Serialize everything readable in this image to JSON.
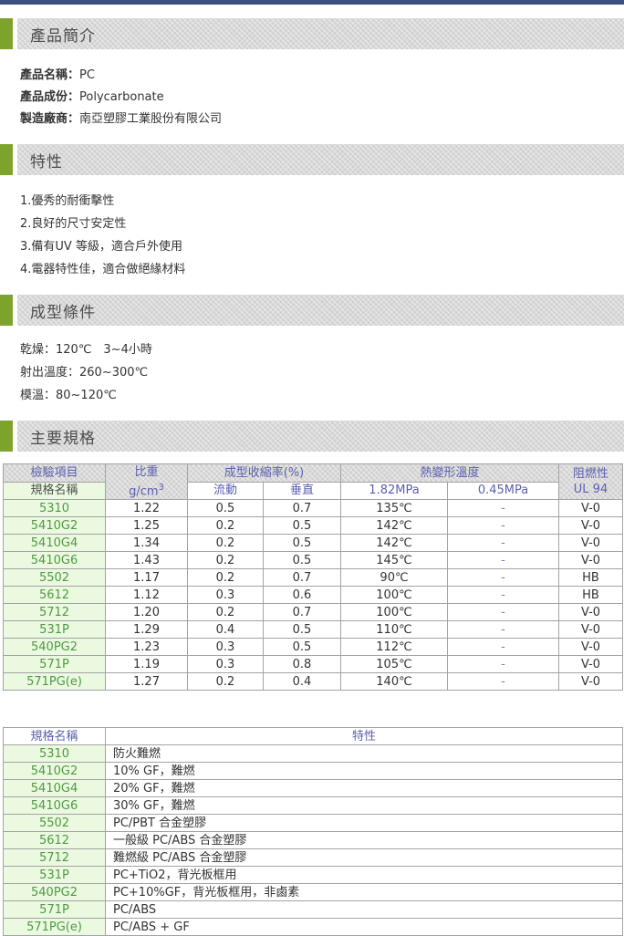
{
  "page": {
    "topbar_color": "#3d4f80",
    "accent_color": "#7ea32c"
  },
  "sections": {
    "intro_title": "產品簡介",
    "features_title": "特性",
    "molding_title": "成型條件",
    "specs_title": "主要規格"
  },
  "product_info": [
    {
      "label": "產品名稱：",
      "value": "PC"
    },
    {
      "label": "產品成份：",
      "value": "Polycarbonate"
    },
    {
      "label": "製造廠商：",
      "value": "南亞塑膠工業股份有限公司"
    }
  ],
  "features_list": [
    "1.優秀的耐衝擊性",
    "2.良好的尺寸安定性",
    "3.備有UV 等級，適合戶外使用",
    "4.電器特性佳，適合做絕緣材料"
  ],
  "molding_list": [
    "乾燥：120℃　3~4小時",
    "射出溫度：260~300℃",
    "模溫：80~120℃"
  ],
  "spec_table": {
    "header": {
      "col_test_item": "檢驗項目",
      "col_spec_name": "規格名稱",
      "col_density_line1": "比重",
      "col_density_line2": "g/cm",
      "col_density_sup": "3",
      "col_shrinkage": "成型收縮率(%)",
      "col_flow": "流動",
      "col_vertical": "垂直",
      "col_hdt": "熱變形溫度",
      "col_mpa182": "1.82MPa",
      "col_mpa045": "0.45MPa",
      "col_flame_line1": "阻燃性",
      "col_flame_line2": "UL 94"
    },
    "rows": [
      {
        "name": "5310",
        "density": "1.22",
        "flow": "0.5",
        "vertical": "0.7",
        "hdt182": "135℃",
        "hdt045": "-",
        "ul94": "V-0"
      },
      {
        "name": "5410G2",
        "density": "1.25",
        "flow": "0.2",
        "vertical": "0.5",
        "hdt182": "142℃",
        "hdt045": "-",
        "ul94": "V-0"
      },
      {
        "name": "5410G4",
        "density": "1.34",
        "flow": "0.2",
        "vertical": "0.5",
        "hdt182": "142℃",
        "hdt045": "-",
        "ul94": "V-0"
      },
      {
        "name": "5410G6",
        "density": "1.43",
        "flow": "0.2",
        "vertical": "0.5",
        "hdt182": "145℃",
        "hdt045": "-",
        "ul94": "V-0"
      },
      {
        "name": "5502",
        "density": "1.17",
        "flow": "0.2",
        "vertical": "0.7",
        "hdt182": "90℃",
        "hdt045": "-",
        "ul94": "HB"
      },
      {
        "name": "5612",
        "density": "1.12",
        "flow": "0.3",
        "vertical": "0.6",
        "hdt182": "100℃",
        "hdt045": "-",
        "ul94": "HB"
      },
      {
        "name": "5712",
        "density": "1.20",
        "flow": "0.2",
        "vertical": "0.7",
        "hdt182": "100℃",
        "hdt045": "-",
        "ul94": "V-0"
      },
      {
        "name": "531P",
        "density": "1.29",
        "flow": "0.4",
        "vertical": "0.5",
        "hdt182": "110℃",
        "hdt045": "-",
        "ul94": "V-0"
      },
      {
        "name": "540PG2",
        "density": "1.23",
        "flow": "0.3",
        "vertical": "0.5",
        "hdt182": "112℃",
        "hdt045": "-",
        "ul94": "V-0"
      },
      {
        "name": "571P",
        "density": "1.19",
        "flow": "0.3",
        "vertical": "0.8",
        "hdt182": "105℃",
        "hdt045": "-",
        "ul94": "V-0"
      },
      {
        "name": "571PG(e)",
        "density": "1.27",
        "flow": "0.2",
        "vertical": "0.4",
        "hdt182": "140℃",
        "hdt045": "-",
        "ul94": "V-0"
      }
    ]
  },
  "feature_table": {
    "header": {
      "col_spec_name": "規格名稱",
      "col_feature": "特性"
    },
    "rows": [
      {
        "name": "5310",
        "feature": "防火難燃"
      },
      {
        "name": "5410G2",
        "feature": "10% GF，難燃"
      },
      {
        "name": "5410G4",
        "feature": "20% GF，難燃"
      },
      {
        "name": "5410G6",
        "feature": "30% GF，難燃"
      },
      {
        "name": "5502",
        "feature": "PC/PBT 合金塑膠"
      },
      {
        "name": "5612",
        "feature": "一般級 PC/ABS 合金塑膠"
      },
      {
        "name": "5712",
        "feature": "難燃級 PC/ABS 合金塑膠"
      },
      {
        "name": "531P",
        "feature": "PC+TiO2，背光板框用"
      },
      {
        "name": "540PG2",
        "feature": "PC+10%GF，背光板框用，非鹵素"
      },
      {
        "name": "571P",
        "feature": "PC/ABS"
      },
      {
        "name": "571PG(e)",
        "feature": "PC/ABS + GF"
      }
    ]
  }
}
